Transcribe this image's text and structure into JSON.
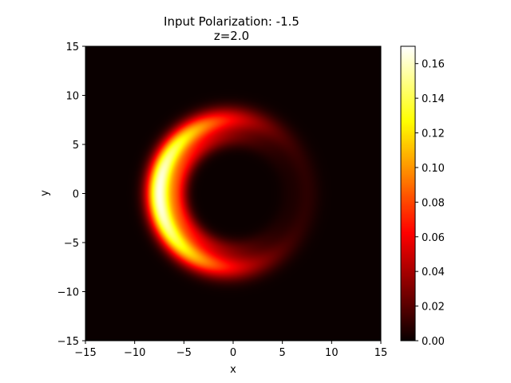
{
  "chart_data": {
    "type": "heatmap",
    "title": "Input Polarization: -1.5",
    "subtitle": "z=2.0",
    "xlabel": "x",
    "ylabel": "y",
    "xlim": [
      -15,
      15
    ],
    "ylim": [
      -15,
      15
    ],
    "xticks": [
      -15,
      -10,
      -5,
      0,
      5,
      10,
      15
    ],
    "yticks": [
      -15,
      -10,
      -5,
      0,
      5,
      10,
      15
    ],
    "xtick_labels": [
      "−15",
      "−10",
      "−5",
      "0",
      "5",
      "10",
      "15"
    ],
    "ytick_labels": [
      "−15",
      "−10",
      "−5",
      "0",
      "5",
      "10",
      "15"
    ],
    "colormap": "hot",
    "colorbar": {
      "range": [
        0.0,
        0.17
      ],
      "ticks": [
        0.0,
        0.02,
        0.04,
        0.06,
        0.08,
        0.1,
        0.12,
        0.14,
        0.16
      ],
      "tick_labels": [
        "0.00",
        "0.02",
        "0.04",
        "0.06",
        "0.08",
        "0.10",
        "0.12",
        "0.14",
        "0.16"
      ]
    },
    "grid": false,
    "features": [
      {
        "shape": "ring",
        "center": [
          0,
          0
        ],
        "radius": 7.5,
        "width": 0.9,
        "peak": 0.165,
        "brightest_side": "left",
        "opening": "right"
      },
      {
        "shape": "ring",
        "center": [
          0,
          0
        ],
        "radius": 5.6,
        "width": 0.7,
        "peak": 0.06,
        "brightest_side": "left",
        "opening": "right"
      }
    ]
  }
}
